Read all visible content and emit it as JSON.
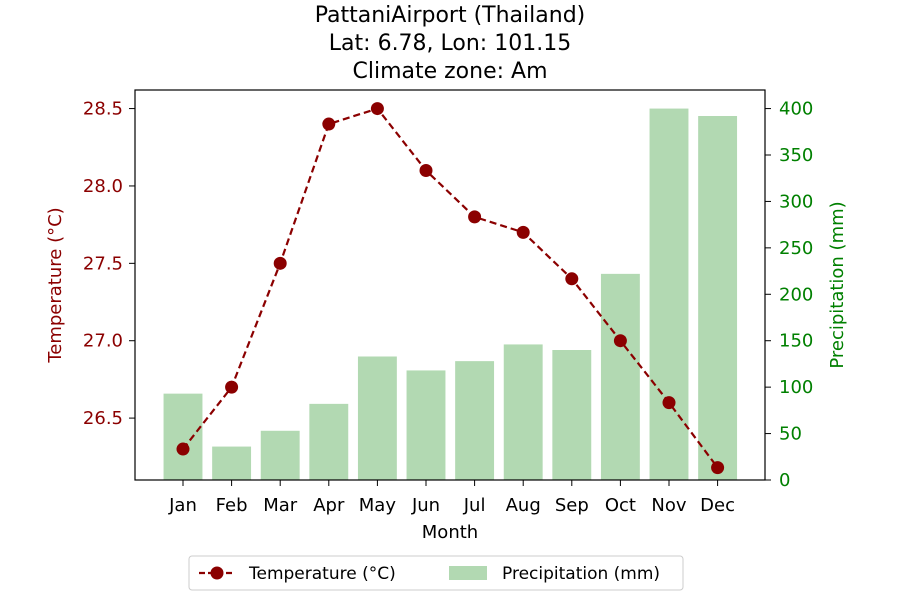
{
  "chart_data": {
    "type": "bar+line",
    "title_lines": [
      "PattaniAirport (Thailand)",
      "Lat: 6.78, Lon: 101.15",
      "Climate zone: Am"
    ],
    "xlabel": "Month",
    "categories": [
      "Jan",
      "Feb",
      "Mar",
      "Apr",
      "May",
      "Jun",
      "Jul",
      "Aug",
      "Sep",
      "Oct",
      "Nov",
      "Dec"
    ],
    "temperature": {
      "name": "Temperature (°C)",
      "axis_label": "Temperature (°C)",
      "color": "#8b0000",
      "values": [
        26.3,
        26.7,
        27.5,
        28.4,
        28.5,
        28.1,
        27.8,
        27.7,
        27.4,
        27.0,
        26.6,
        26.18
      ],
      "ylim": [
        26.1,
        28.62
      ],
      "ticks": [
        26.5,
        27.0,
        27.5,
        28.0,
        28.5
      ]
    },
    "precipitation": {
      "name": "Precipitation (mm)",
      "axis_label": "Precipitation (mm)",
      "color": "#b2d9b2",
      "axis_color": "#008000",
      "values": [
        93,
        36,
        53,
        82,
        133,
        118,
        128,
        146,
        140,
        222,
        400,
        392
      ],
      "ylim": [
        0,
        420
      ],
      "ticks": [
        0,
        50,
        100,
        150,
        200,
        250,
        300,
        350,
        400
      ]
    },
    "legend_position": "bottom-center",
    "grid": false
  }
}
